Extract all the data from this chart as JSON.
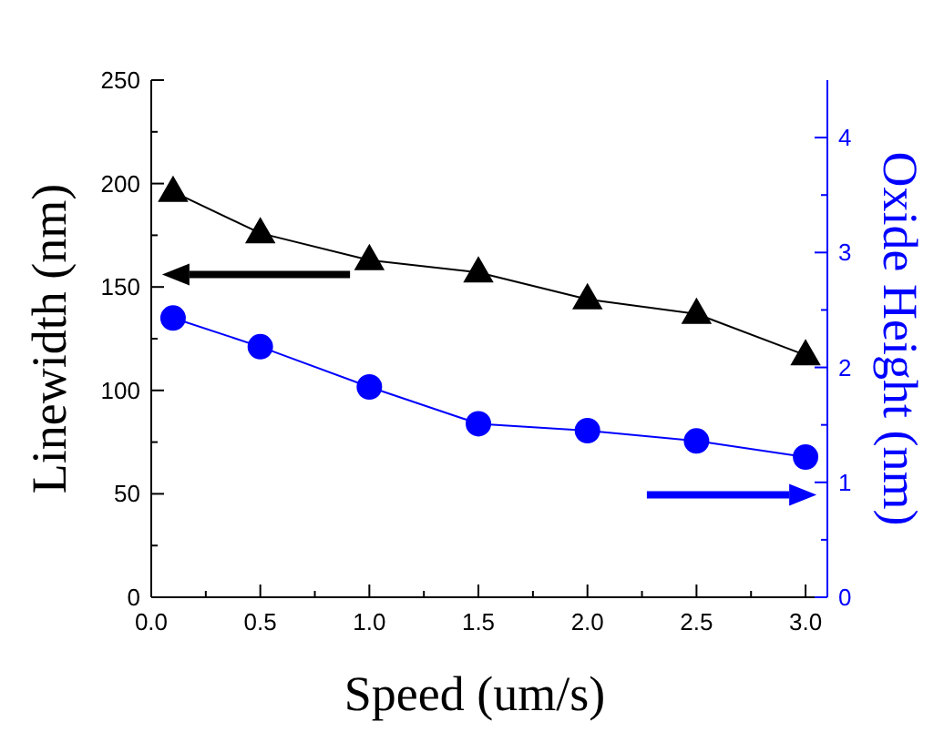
{
  "chart_data": {
    "type": "line",
    "xlabel": "Speed (um/s)",
    "ylabel": "Linewidth (nm)",
    "y2label": "Oxide Height (nm)",
    "x": [
      0.1,
      0.5,
      1.0,
      1.5,
      2.0,
      2.5,
      3.0
    ],
    "series": [
      {
        "color": "#000000",
        "marker": "triangle",
        "values": [
          196,
          176,
          163,
          157,
          144,
          137,
          117
        ]
      },
      {
        "color": "#0000ff",
        "marker": "circle",
        "axis": "y2",
        "values": [
          2.43,
          2.18,
          1.83,
          1.51,
          1.45,
          1.36,
          1.22
        ]
      }
    ],
    "xlim": [
      0,
      3.1
    ],
    "xticks": [
      {
        "value": 0,
        "label": "0.0"
      },
      {
        "value": 0.25,
        "label": null
      },
      {
        "value": 0.5,
        "label": "0.5"
      },
      {
        "value": 0.75,
        "label": null
      },
      {
        "value": 1,
        "label": "1.0"
      },
      {
        "value": 1.25,
        "label": null
      },
      {
        "value": 1.5,
        "label": "1.5"
      },
      {
        "value": 1.75,
        "label": null
      },
      {
        "value": 2,
        "label": "2.0"
      },
      {
        "value": 2.25,
        "label": null
      },
      {
        "value": 2.5,
        "label": "2.5"
      },
      {
        "value": 2.75,
        "label": null
      },
      {
        "value": 3,
        "label": "3.0"
      }
    ],
    "ylim": [
      0,
      250
    ],
    "yticks": [
      0,
      {
        "value": 25,
        "label": null
      },
      50,
      {
        "value": 75,
        "label": null
      },
      100,
      {
        "value": 125,
        "label": null
      },
      150,
      {
        "value": 175,
        "label": null
      },
      200,
      {
        "value": 225,
        "label": null
      },
      250
    ],
    "y2lim": [
      0,
      4.5
    ],
    "y2ticks": [
      0,
      {
        "value": 0.5,
        "label": null
      },
      1,
      {
        "value": 1.5,
        "label": null
      },
      2,
      {
        "value": 2.5,
        "label": null
      },
      3,
      {
        "value": 3.5,
        "label": null
      },
      4
    ]
  }
}
